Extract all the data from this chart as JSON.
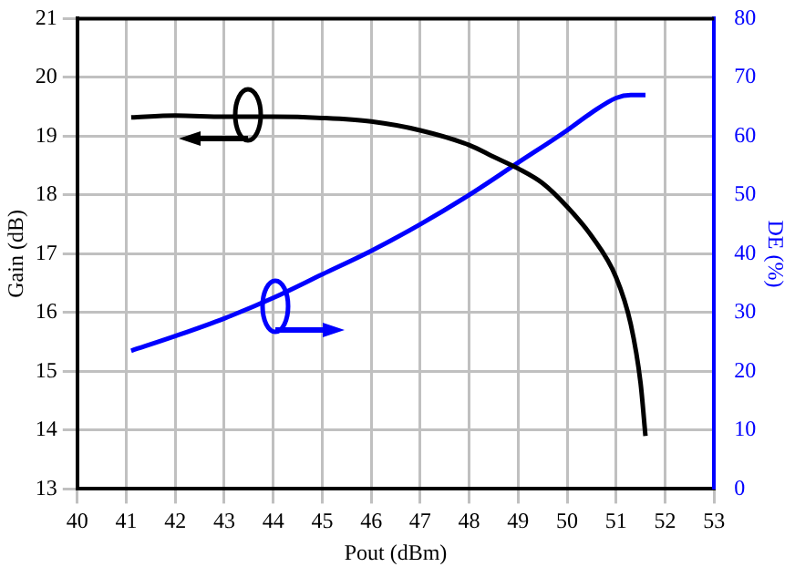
{
  "chart_data": {
    "type": "line",
    "xlabel": "Pout (dBm)",
    "ylabel": "Gain (dB)",
    "y2label": "DE (%)",
    "xlim": [
      40,
      53
    ],
    "xticks": [
      40,
      41,
      42,
      43,
      44,
      45,
      46,
      47,
      48,
      49,
      50,
      51,
      52,
      53
    ],
    "ylim": [
      13,
      21
    ],
    "yticks": [
      13,
      14,
      15,
      16,
      17,
      18,
      19,
      20,
      21
    ],
    "y2lim": [
      0,
      80
    ],
    "y2ticks": [
      0,
      10,
      20,
      30,
      40,
      50,
      60,
      70,
      80
    ],
    "grid": true,
    "legend": false,
    "marker": "none",
    "line_style": "solid",
    "series": [
      {
        "color": "#000000",
        "x": [
          41.1,
          42,
          43,
          44,
          45,
          46,
          47,
          48,
          48.5,
          49,
          49.5,
          50,
          50.5,
          51,
          51.3,
          51.5,
          51.6
        ],
        "values": [
          19.32,
          19.35,
          19.33,
          19.33,
          19.31,
          19.25,
          19.1,
          18.85,
          18.65,
          18.45,
          18.2,
          17.8,
          17.3,
          16.6,
          15.8,
          14.8,
          13.9
        ]
      },
      {
        "color": "#0000ff",
        "axis": "y2",
        "x": [
          41.1,
          42,
          43,
          44,
          45,
          46,
          47,
          48,
          49,
          50,
          50.5,
          51,
          51.3,
          51.6
        ],
        "values": [
          23.5,
          26,
          29,
          32.5,
          36.5,
          40.5,
          45,
          50,
          55.5,
          61,
          64,
          66.5,
          67,
          67
        ]
      }
    ]
  }
}
